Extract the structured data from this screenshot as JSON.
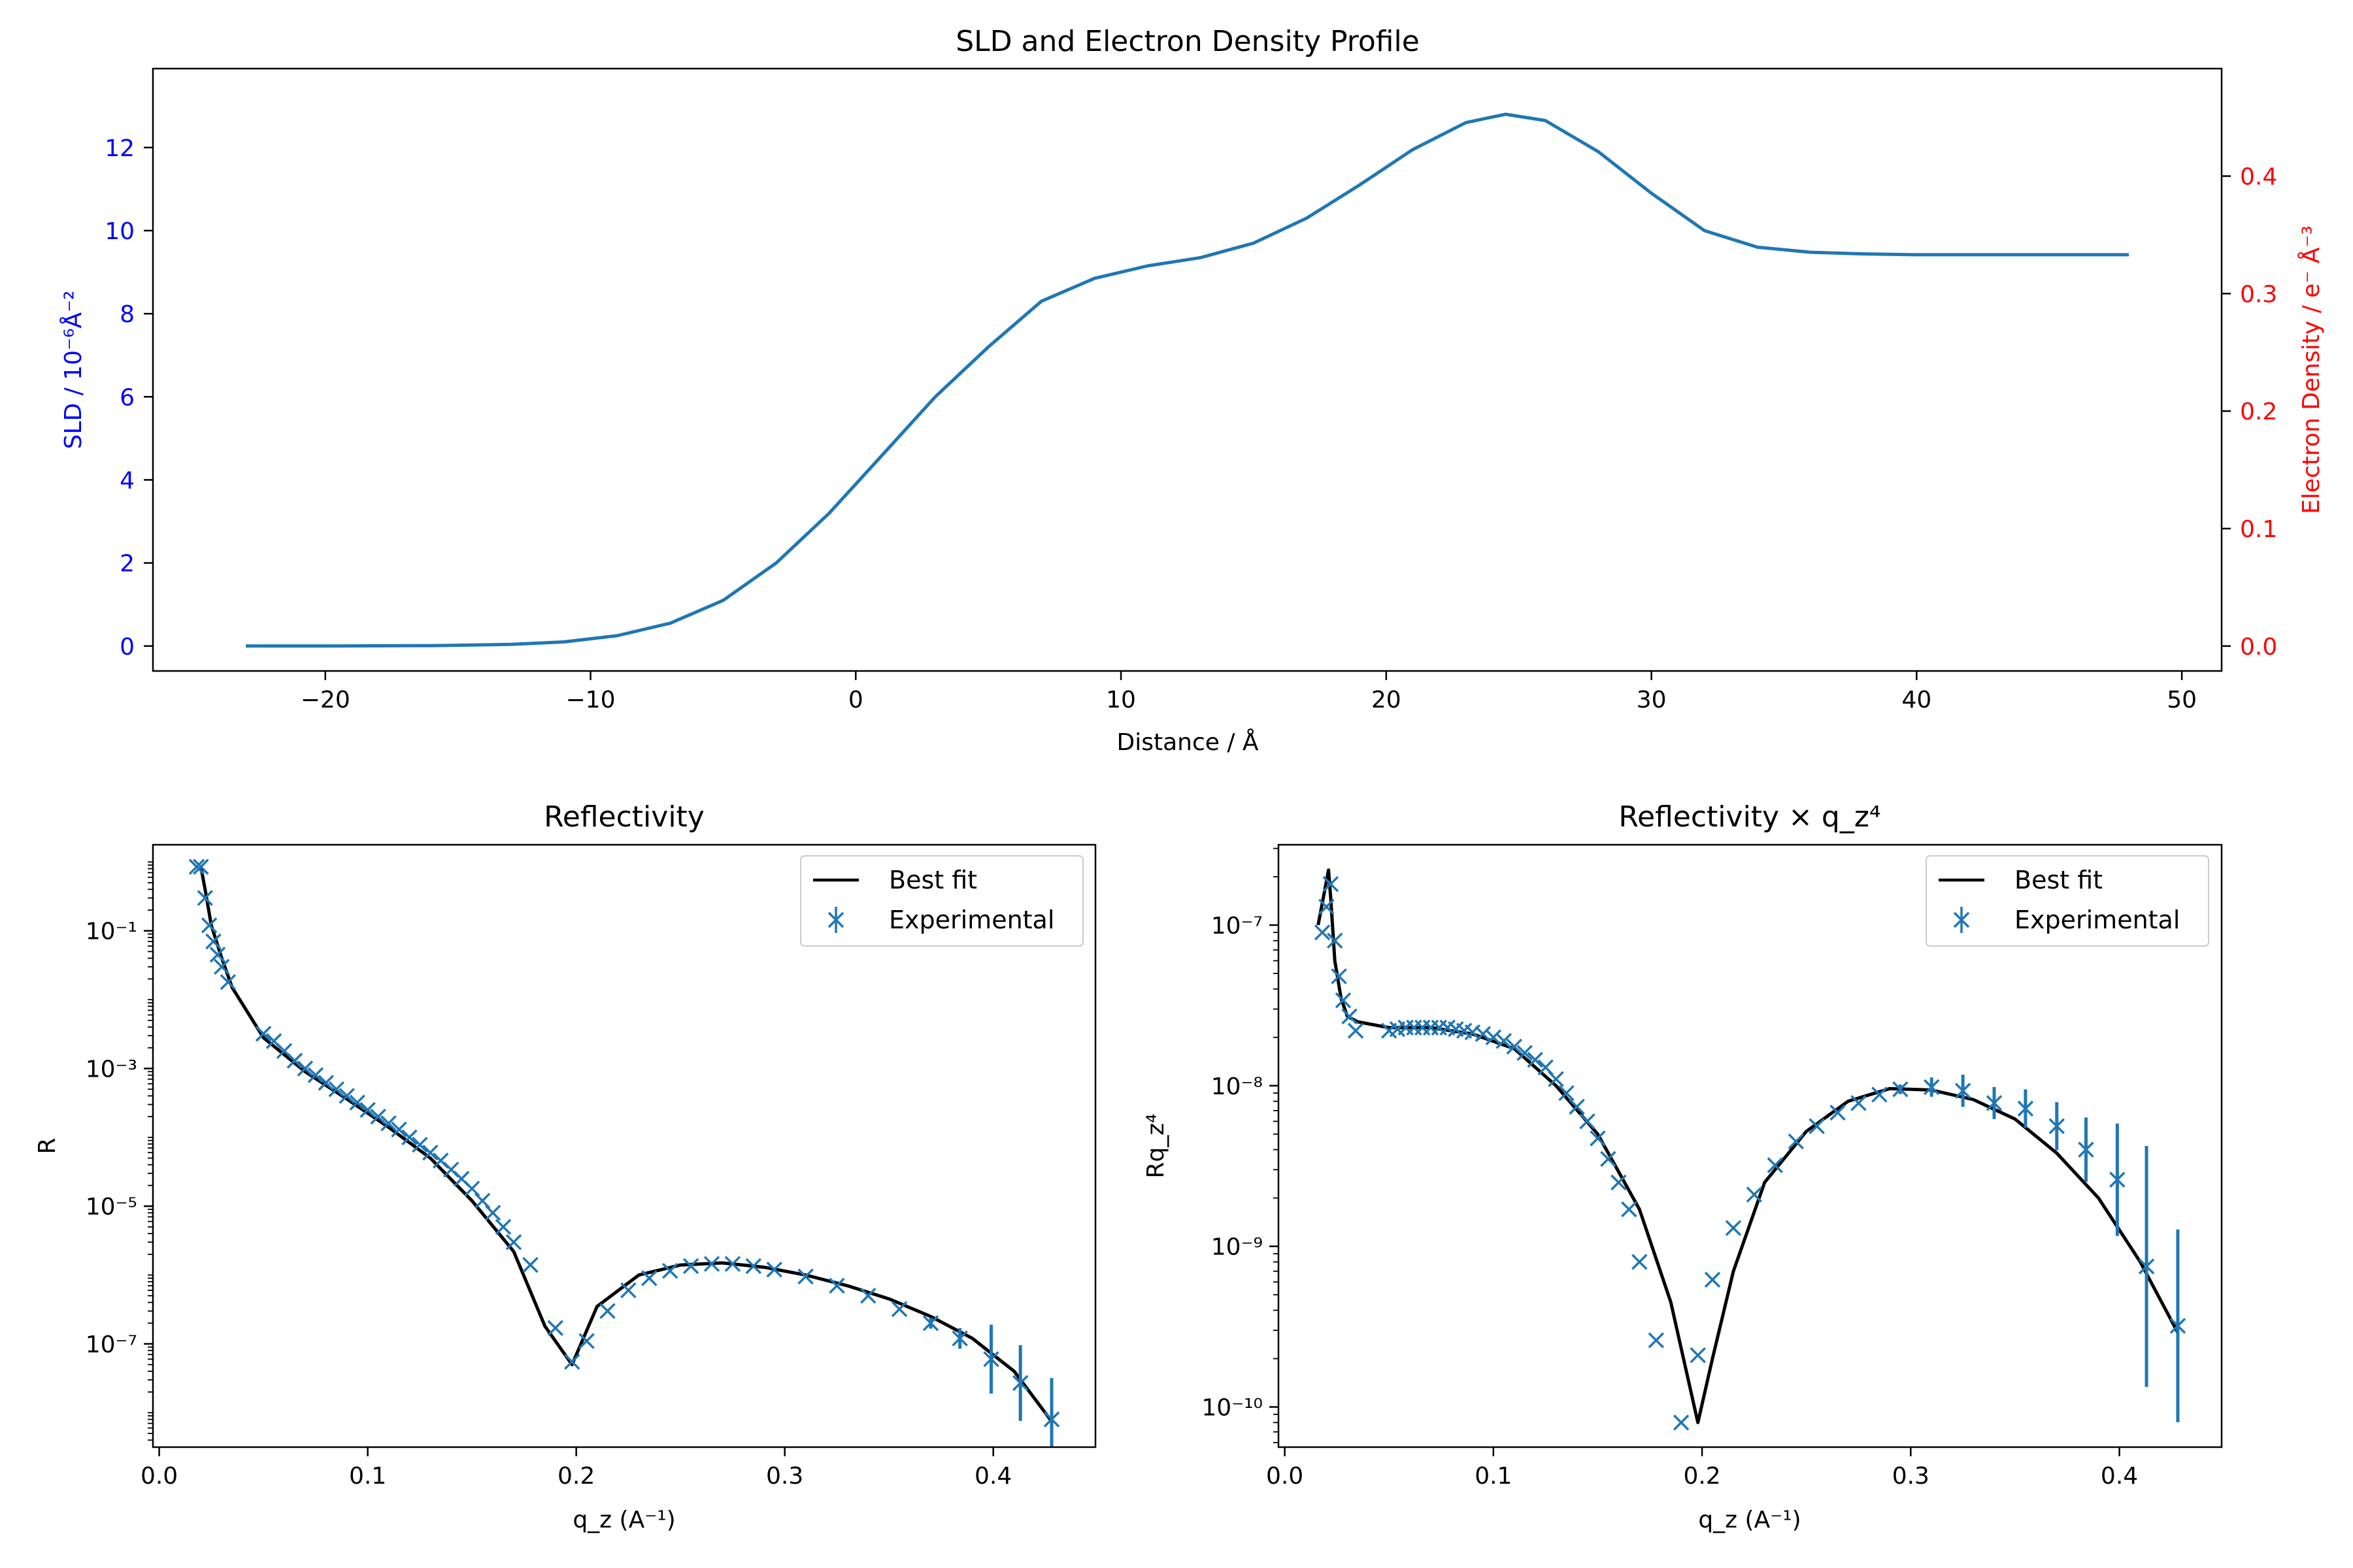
{
  "chart_data": [
    {
      "type": "line",
      "title": "SLD and Electron Density Profile",
      "xlabel": "Distance / Å",
      "ylabel": "SLD / 10⁻⁶Å⁻²",
      "ylabel_right": "Electron Density / e⁻ Å⁻³",
      "xlim": [
        -26.5,
        51.5
      ],
      "ylim": [
        -0.6,
        13.9
      ],
      "ylim_right": [
        -0.0212,
        0.4915
      ],
      "xticks": [
        -20,
        -10,
        0,
        10,
        20,
        30,
        40,
        50
      ],
      "xtick_labels": [
        "−20",
        "−10",
        "0",
        "10",
        "20",
        "30",
        "40",
        "50"
      ],
      "yticks": [
        0,
        2,
        4,
        6,
        8,
        10,
        12
      ],
      "ytick_labels": [
        "0",
        "2",
        "4",
        "6",
        "8",
        "10",
        "12"
      ],
      "yticks_right": [
        0.0,
        0.1,
        0.2,
        0.3,
        0.4
      ],
      "ytick_right_labels": [
        "0.0",
        "0.1",
        "0.2",
        "0.3",
        "0.4"
      ],
      "left_axis_color": "#0000ff",
      "right_axis_color": "#ff0000",
      "series": [
        {
          "color": "#1f77b4",
          "x": [
            -23,
            -20,
            -16,
            -13,
            -11,
            -9,
            -7,
            -5,
            -3,
            -1,
            0,
            1,
            3,
            5,
            7,
            9,
            11,
            13,
            15,
            17,
            19,
            21,
            23,
            24.5,
            26,
            28,
            30,
            32,
            34,
            36,
            38,
            40,
            44,
            48
          ],
          "y": [
            0,
            0,
            0.01,
            0.04,
            0.1,
            0.25,
            0.55,
            1.1,
            2.0,
            3.2,
            3.9,
            4.6,
            6.0,
            7.2,
            8.3,
            8.85,
            9.15,
            9.35,
            9.7,
            10.3,
            11.1,
            11.95,
            12.6,
            12.8,
            12.65,
            11.9,
            10.9,
            10.0,
            9.6,
            9.48,
            9.44,
            9.42,
            9.42,
            9.42
          ]
        }
      ]
    },
    {
      "type": "scatter",
      "title": "Reflectivity",
      "xlabel": "q_z (A⁻¹)",
      "ylabel": "R",
      "xlim": [
        -0.003,
        0.449
      ],
      "ylim_log10": [
        -8.5,
        0.25
      ],
      "log_y": true,
      "xticks": [
        0.0,
        0.1,
        0.2,
        0.3,
        0.4
      ],
      "xtick_labels": [
        "0.0",
        "0.1",
        "0.2",
        "0.3",
        "0.4"
      ],
      "yticks_log10": [
        -1,
        -3,
        -5,
        -7
      ],
      "legend": [
        "Best fit",
        "Experimental"
      ],
      "legend_placement": "top-right",
      "series": [
        {
          "name": "Best fit",
          "color": "#000000",
          "x": [
            0.02,
            0.022,
            0.025,
            0.03,
            0.035,
            0.05,
            0.07,
            0.09,
            0.11,
            0.13,
            0.15,
            0.17,
            0.185,
            0.198,
            0.21,
            0.23,
            0.25,
            0.27,
            0.29,
            0.31,
            0.33,
            0.35,
            0.37,
            0.39,
            0.41,
            0.428
          ],
          "y": [
            0.85,
            0.4,
            0.12,
            0.04,
            0.015,
            0.0028,
            0.0009,
            0.00036,
            0.00014,
            5e-05,
            1.2e-05,
            2.2e-06,
            1.8e-07,
            5e-08,
            3.5e-07,
            1e-06,
            1.4e-06,
            1.5e-06,
            1.3e-06,
            1e-06,
            7e-07,
            4.5e-07,
            2.5e-07,
            1.2e-07,
            4e-08,
            7.5e-09
          ]
        },
        {
          "name": "Experimental",
          "color": "#1f77b4",
          "x": [
            0.018,
            0.02,
            0.022,
            0.024,
            0.026,
            0.028,
            0.03,
            0.033,
            0.05,
            0.055,
            0.06,
            0.065,
            0.07,
            0.075,
            0.08,
            0.085,
            0.09,
            0.095,
            0.1,
            0.105,
            0.11,
            0.115,
            0.12,
            0.125,
            0.13,
            0.135,
            0.14,
            0.145,
            0.15,
            0.155,
            0.16,
            0.165,
            0.17,
            0.178,
            0.19,
            0.198,
            0.205,
            0.215,
            0.225,
            0.235,
            0.245,
            0.255,
            0.265,
            0.275,
            0.285,
            0.295,
            0.31,
            0.325,
            0.34,
            0.355,
            0.37,
            0.384,
            0.399,
            0.413,
            0.428
          ],
          "y": [
            0.85,
            0.85,
            0.3,
            0.12,
            0.07,
            0.045,
            0.03,
            0.018,
            0.0032,
            0.0025,
            0.0018,
            0.0013,
            0.001,
            0.0008,
            0.00062,
            0.0005,
            0.0004,
            0.00032,
            0.00025,
            0.0002,
            0.00016,
            0.00013,
            0.0001,
            7.8e-05,
            6e-05,
            4.6e-05,
            3.4e-05,
            2.5e-05,
            1.8e-05,
            1.2e-05,
            8e-06,
            5e-06,
            3e-06,
            1.4e-06,
            1.7e-07,
            5.5e-08,
            1.1e-07,
            3e-07,
            6e-07,
            9e-07,
            1.15e-06,
            1.35e-06,
            1.45e-06,
            1.45e-06,
            1.35e-06,
            1.2e-06,
            9.5e-07,
            7e-07,
            5e-07,
            3.2e-07,
            2e-07,
            1.2e-07,
            6e-08,
            2.7e-08,
            8e-09
          ],
          "yerr_log10": [
            0,
            0,
            0,
            0,
            0,
            0,
            0,
            0,
            0,
            0,
            0,
            0,
            0,
            0,
            0,
            0,
            0,
            0,
            0,
            0,
            0,
            0,
            0,
            0,
            0,
            0,
            0,
            0,
            0,
            0,
            0,
            0,
            0,
            0,
            0,
            0,
            0,
            0,
            0,
            0,
            0,
            0,
            0,
            0,
            0,
            0,
            0,
            0,
            0,
            0,
            0.08,
            0.15,
            0.5,
            0.55,
            0.6
          ]
        }
      ]
    },
    {
      "type": "scatter",
      "title": "Reflectivity × q_z⁴",
      "xlabel": "q_z (A⁻¹)",
      "ylabel": "Rq_z⁴",
      "xlim": [
        -0.003,
        0.449
      ],
      "ylim_log10": [
        -10.25,
        -6.5
      ],
      "log_y": true,
      "xticks": [
        0.0,
        0.1,
        0.2,
        0.3,
        0.4
      ],
      "xtick_labels": [
        "0.0",
        "0.1",
        "0.2",
        "0.3",
        "0.4"
      ],
      "yticks_log10": [
        -7,
        -8,
        -9,
        -10
      ],
      "legend": [
        "Best fit",
        "Experimental"
      ],
      "legend_placement": "top-right",
      "series": [
        {
          "name": "Best fit",
          "color": "#000000",
          "x": [
            0.016,
            0.019,
            0.021,
            0.022,
            0.024,
            0.027,
            0.03,
            0.035,
            0.05,
            0.07,
            0.09,
            0.11,
            0.13,
            0.15,
            0.17,
            0.185,
            0.198,
            0.205,
            0.215,
            0.23,
            0.25,
            0.27,
            0.29,
            0.31,
            0.33,
            0.35,
            0.37,
            0.39,
            0.41,
            0.428
          ],
          "y": [
            1e-07,
            1.6e-07,
            2.2e-07,
            1.5e-07,
            6e-08,
            3.5e-08,
            2.7e-08,
            2.5e-08,
            2.3e-08,
            2.3e-08,
            2.1e-08,
            1.7e-08,
            1e-08,
            5e-09,
            1.7e-09,
            4.5e-10,
            8e-11,
            2e-10,
            7e-10,
            2.5e-09,
            5.2e-09,
            8e-09,
            9.6e-09,
            9.4e-09,
            8.2e-09,
            6.2e-09,
            3.8e-09,
            2e-09,
            8e-10,
            2.9e-10
          ]
        },
        {
          "name": "Experimental",
          "color": "#1f77b4",
          "x": [
            0.018,
            0.02,
            0.022,
            0.024,
            0.026,
            0.028,
            0.031,
            0.034,
            0.05,
            0.054,
            0.058,
            0.062,
            0.066,
            0.07,
            0.074,
            0.078,
            0.082,
            0.086,
            0.09,
            0.095,
            0.1,
            0.105,
            0.11,
            0.115,
            0.12,
            0.125,
            0.13,
            0.135,
            0.14,
            0.145,
            0.15,
            0.155,
            0.16,
            0.165,
            0.17,
            0.178,
            0.19,
            0.198,
            0.205,
            0.215,
            0.225,
            0.235,
            0.245,
            0.255,
            0.265,
            0.275,
            0.285,
            0.295,
            0.31,
            0.325,
            0.34,
            0.355,
            0.37,
            0.384,
            0.399,
            0.413,
            0.428
          ],
          "y": [
            9e-08,
            1.3e-07,
            1.8e-07,
            8e-08,
            4.8e-08,
            3.4e-08,
            2.7e-08,
            2.2e-08,
            2.2e-08,
            2.25e-08,
            2.3e-08,
            2.3e-08,
            2.3e-08,
            2.3e-08,
            2.3e-08,
            2.3e-08,
            2.25e-08,
            2.2e-08,
            2.15e-08,
            2.1e-08,
            2e-08,
            1.9e-08,
            1.75e-08,
            1.6e-08,
            1.45e-08,
            1.3e-08,
            1.1e-08,
            9e-09,
            7.4e-09,
            6e-09,
            4.7e-09,
            3.5e-09,
            2.5e-09,
            1.7e-09,
            8e-10,
            2.6e-10,
            8e-11,
            2.1e-10,
            6.2e-10,
            1.3e-09,
            2.1e-09,
            3.2e-09,
            4.5e-09,
            5.6e-09,
            6.8e-09,
            7.8e-09,
            8.8e-09,
            9.5e-09,
            9.8e-09,
            9.3e-09,
            7.8e-09,
            7.2e-09,
            5.6e-09,
            4e-09,
            2.6e-09,
            7.5e-10,
            3.2e-10
          ],
          "yerr_log10": [
            0,
            0,
            0,
            0,
            0,
            0,
            0,
            0,
            0,
            0,
            0,
            0,
            0,
            0,
            0,
            0,
            0,
            0,
            0,
            0,
            0,
            0,
            0,
            0,
            0,
            0,
            0,
            0,
            0,
            0,
            0,
            0,
            0,
            0,
            0,
            0,
            0,
            0,
            0,
            0,
            0,
            0,
            0,
            0,
            0,
            0,
            0,
            0.03,
            0.06,
            0.1,
            0.1,
            0.12,
            0.15,
            0.2,
            0.35,
            0.75,
            0.6
          ]
        }
      ]
    }
  ]
}
